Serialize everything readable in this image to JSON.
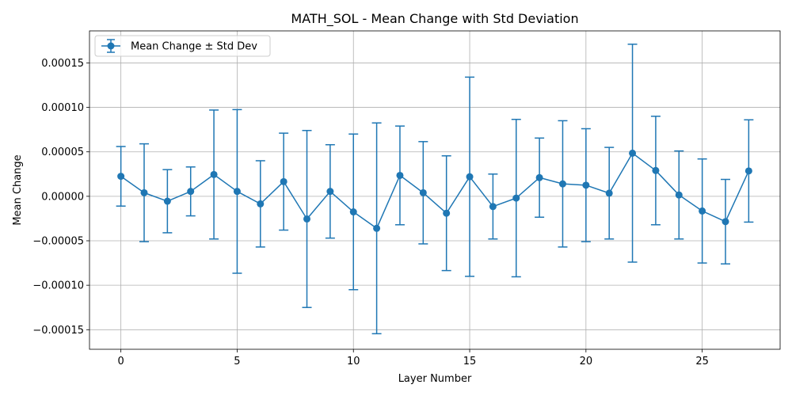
{
  "chart_data": {
    "type": "line",
    "title": "MATH_SOL - Mean Change with Std Deviation",
    "xlabel": "Layer Number",
    "ylabel": "Mean Change",
    "xlim": [
      -1.35,
      28.35
    ],
    "ylim": [
      -0.000172,
      0.000186
    ],
    "xticks": [
      0,
      5,
      10,
      15,
      20,
      25
    ],
    "yticks": [
      -0.00015,
      -0.0001,
      -5e-05,
      0.0,
      5e-05,
      0.0001,
      0.00015
    ],
    "ytick_labels": [
      "−0.00015",
      "−0.00010",
      "−0.00005",
      "0.00000",
      "0.00005",
      "0.00010",
      "0.00015"
    ],
    "grid": true,
    "legend_position": "upper-left",
    "color": "#1f77b4",
    "series": [
      {
        "name": "Mean Change ± Std Dev",
        "x": [
          0,
          1,
          2,
          3,
          4,
          5,
          6,
          7,
          8,
          9,
          10,
          11,
          12,
          13,
          14,
          15,
          16,
          17,
          18,
          19,
          20,
          21,
          22,
          23,
          24,
          25,
          26,
          27
        ],
        "y": [
          2.25e-05,
          4e-06,
          -5.5e-06,
          5.5e-06,
          2.45e-05,
          5.5e-06,
          -8.5e-06,
          1.65e-05,
          -2.55e-05,
          5.5e-06,
          -1.75e-05,
          -3.6e-05,
          2.35e-05,
          4e-06,
          -1.9e-05,
          2.2e-05,
          -1.15e-05,
          -2e-06,
          2.1e-05,
          1.4e-05,
          1.25e-05,
          3.5e-06,
          4.85e-05,
          2.9e-05,
          1.5e-06,
          -1.65e-05,
          -2.85e-05,
          2.85e-05
        ],
        "err": [
          3.35e-05,
          5.5e-05,
          3.55e-05,
          2.75e-05,
          7.25e-05,
          9.2e-05,
          4.85e-05,
          5.45e-05,
          9.95e-05,
          5.25e-05,
          8.75e-05,
          0.0001185,
          5.55e-05,
          5.75e-05,
          6.45e-05,
          0.000112,
          3.65e-05,
          8.85e-05,
          4.45e-05,
          7.1e-05,
          6.35e-05,
          5.15e-05,
          0.0001225,
          6.1e-05,
          4.95e-05,
          5.85e-05,
          4.75e-05,
          5.75e-05
        ]
      }
    ]
  }
}
